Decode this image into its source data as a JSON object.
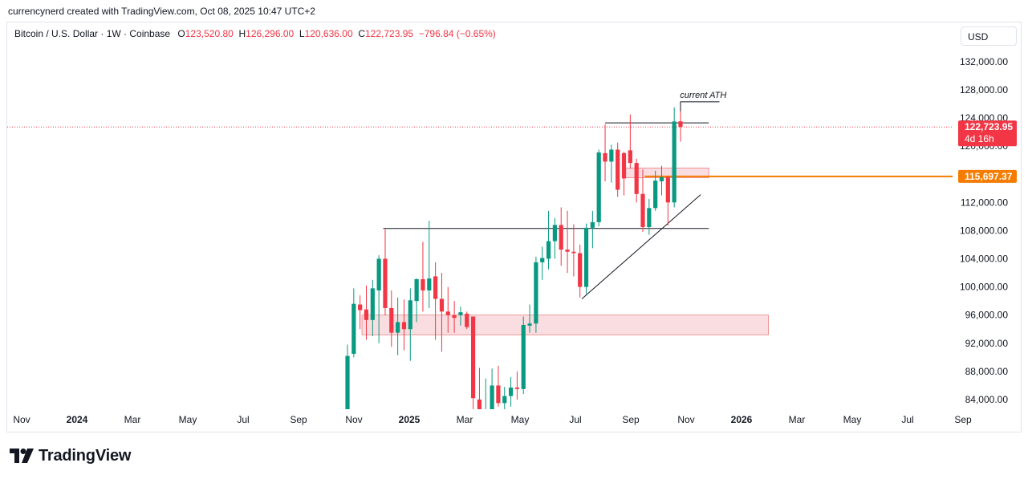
{
  "credit": "currencynerd created with TradingView.com, Oct 08, 2025 10:47 UTC+2",
  "legend": {
    "symbol": "Bitcoin / U.S. Dollar · 1W · Coinbase",
    "o_label": "O",
    "o_value": "123,520.80",
    "h_label": "H",
    "h_value": "126,296.00",
    "l_label": "L",
    "l_value": "120,636.00",
    "c_label": "C",
    "c_value": "122,723.95",
    "change": "−796.84 (−0.65%)"
  },
  "currency": "USD",
  "brand": "TradingView",
  "colors": {
    "up": "#089981",
    "down": "#f23645",
    "zone_fill": "#f8d7da",
    "level_orange": "#f57c00",
    "line": "#131722"
  },
  "chart_data": {
    "type": "candlestick",
    "timeframe": "1W",
    "y_axis": {
      "ylim": [
        82000,
        136000
      ],
      "ticks": [
        84000,
        88000,
        92000,
        96000,
        100000,
        104000,
        108000,
        112000,
        116000,
        120000,
        124000,
        128000,
        132000
      ],
      "tick_labels": [
        "84,000.00",
        "88,000.00",
        "92,000.00",
        "96,000.00",
        "100,000.00",
        "104,000.00",
        "108,000.00",
        "112,000.00",
        "116,000.00",
        "120,000.00",
        "124,000.00",
        "128,000.00",
        "132,000.00"
      ]
    },
    "x_axis": {
      "labels": [
        "Nov",
        "2024",
        "Mar",
        "May",
        "Jul",
        "Sep",
        "Nov",
        "2025",
        "Mar",
        "May",
        "Jul",
        "Sep",
        "Nov",
        "2026",
        "Mar",
        "May",
        "Jul",
        "Sep"
      ],
      "label_months": [
        0,
        2,
        4,
        6,
        8,
        10,
        12,
        14,
        16,
        18,
        20,
        22,
        24,
        26,
        28,
        30,
        32,
        34
      ],
      "bold_labels": [
        "2024",
        "2025",
        "2026"
      ]
    },
    "candles": [
      {
        "t": 1,
        "o": 82000,
        "h": 91800,
        "l": 80000,
        "c": 90200
      },
      {
        "t": 2,
        "o": 90500,
        "h": 99800,
        "l": 90000,
        "c": 97600
      },
      {
        "t": 3,
        "o": 97500,
        "h": 98800,
        "l": 94000,
        "c": 96700
      },
      {
        "t": 4,
        "o": 96800,
        "h": 100200,
        "l": 92500,
        "c": 95300
      },
      {
        "t": 5,
        "o": 95300,
        "h": 101000,
        "l": 93000,
        "c": 99800
      },
      {
        "t": 6,
        "o": 99500,
        "h": 104500,
        "l": 92000,
        "c": 104000
      },
      {
        "t": 7,
        "o": 104000,
        "h": 108200,
        "l": 96000,
        "c": 97000
      },
      {
        "t": 8,
        "o": 97000,
        "h": 99500,
        "l": 91500,
        "c": 93500
      },
      {
        "t": 9,
        "o": 93500,
        "h": 98500,
        "l": 90300,
        "c": 95000
      },
      {
        "t": 10,
        "o": 95000,
        "h": 98200,
        "l": 91000,
        "c": 94000
      },
      {
        "t": 11,
        "o": 94000,
        "h": 99800,
        "l": 89500,
        "c": 98100
      },
      {
        "t": 12,
        "o": 98000,
        "h": 101200,
        "l": 95000,
        "c": 101100
      },
      {
        "t": 13,
        "o": 101100,
        "h": 106400,
        "l": 96500,
        "c": 99500
      },
      {
        "t": 14,
        "o": 99500,
        "h": 109400,
        "l": 97000,
        "c": 101200
      },
      {
        "t": 15,
        "o": 101500,
        "h": 103500,
        "l": 92500,
        "c": 98300
      },
      {
        "t": 16,
        "o": 98300,
        "h": 102000,
        "l": 90800,
        "c": 96500
      },
      {
        "t": 17,
        "o": 96500,
        "h": 100000,
        "l": 93500,
        "c": 96000
      },
      {
        "t": 18,
        "o": 96000,
        "h": 98000,
        "l": 93500,
        "c": 95600
      },
      {
        "t": 19,
        "o": 96000,
        "h": 97200,
        "l": 94500,
        "c": 96400
      },
      {
        "t": 20,
        "o": 96200,
        "h": 96500,
        "l": 94000,
        "c": 94300
      },
      {
        "t": 21,
        "o": 95800,
        "h": 95800,
        "l": 78000,
        "c": 84200
      },
      {
        "t": 22,
        "o": 84000,
        "h": 88500,
        "l": 77000,
        "c": 80500
      },
      {
        "t": 23,
        "o": 80500,
        "h": 87000,
        "l": 78000,
        "c": 82500
      },
      {
        "t": 24,
        "o": 82500,
        "h": 88400,
        "l": 81500,
        "c": 86000
      },
      {
        "t": 25,
        "o": 86000,
        "h": 88800,
        "l": 83000,
        "c": 83500
      },
      {
        "t": 26,
        "o": 83500,
        "h": 85800,
        "l": 80500,
        "c": 84500
      },
      {
        "t": 27,
        "o": 84500,
        "h": 87200,
        "l": 83000,
        "c": 85700
      },
      {
        "t": 28,
        "o": 85700,
        "h": 88000,
        "l": 84000,
        "c": 85500
      },
      {
        "t": 29,
        "o": 85500,
        "h": 95800,
        "l": 84800,
        "c": 94600
      },
      {
        "t": 30,
        "o": 94500,
        "h": 97500,
        "l": 93500,
        "c": 94800
      },
      {
        "t": 31,
        "o": 94800,
        "h": 104300,
        "l": 93500,
        "c": 103500
      },
      {
        "t": 32,
        "o": 103500,
        "h": 105700,
        "l": 101000,
        "c": 104100
      },
      {
        "t": 33,
        "o": 104000,
        "h": 110800,
        "l": 102500,
        "c": 106500
      },
      {
        "t": 34,
        "o": 106500,
        "h": 109800,
        "l": 104000,
        "c": 108800
      },
      {
        "t": 35,
        "o": 108800,
        "h": 111300,
        "l": 103000,
        "c": 105300
      },
      {
        "t": 36,
        "o": 105300,
        "h": 110800,
        "l": 102000,
        "c": 105000
      },
      {
        "t": 37,
        "o": 105000,
        "h": 108900,
        "l": 101500,
        "c": 104800
      },
      {
        "t": 38,
        "o": 104800,
        "h": 106000,
        "l": 98500,
        "c": 100000
      },
      {
        "t": 39,
        "o": 100000,
        "h": 109000,
        "l": 99000,
        "c": 108400
      },
      {
        "t": 40,
        "o": 108400,
        "h": 110800,
        "l": 105500,
        "c": 109200
      },
      {
        "t": 41,
        "o": 109200,
        "h": 119500,
        "l": 108600,
        "c": 119100
      },
      {
        "t": 42,
        "o": 119000,
        "h": 123100,
        "l": 115000,
        "c": 117800
      },
      {
        "t": 43,
        "o": 117800,
        "h": 120200,
        "l": 114800,
        "c": 119500
      },
      {
        "t": 44,
        "o": 119500,
        "h": 120500,
        "l": 112800,
        "c": 113800
      },
      {
        "t": 45,
        "o": 119000,
        "h": 119200,
        "l": 113000,
        "c": 115400
      },
      {
        "t": 46,
        "o": 119400,
        "h": 124500,
        "l": 116800,
        "c": 117600
      },
      {
        "t": 47,
        "o": 117600,
        "h": 118200,
        "l": 112000,
        "c": 113200
      },
      {
        "t": 48,
        "o": 113200,
        "h": 116700,
        "l": 107800,
        "c": 108500
      },
      {
        "t": 49,
        "o": 108500,
        "h": 112500,
        "l": 107400,
        "c": 111200
      },
      {
        "t": 50,
        "o": 111200,
        "h": 116500,
        "l": 110800,
        "c": 115100
      },
      {
        "t": 51,
        "o": 115000,
        "h": 117200,
        "l": 113000,
        "c": 115600
      },
      {
        "t": 52,
        "o": 115600,
        "h": 115800,
        "l": 108700,
        "c": 112000
      },
      {
        "t": 53,
        "o": 112000,
        "h": 125500,
        "l": 111300,
        "c": 123500
      },
      {
        "t": 54,
        "o": 123520.8,
        "h": 126296.0,
        "l": 120636.0,
        "c": 122723.95
      }
    ],
    "zones": [
      {
        "from_t": 45.2,
        "to_t": 58.5,
        "y_high": 116900,
        "y_low": 115500
      },
      {
        "from_t": 3.3,
        "to_t": 68.0,
        "y_high": 96000,
        "y_low": 93200
      }
    ],
    "horizontal_lines": [
      {
        "y": 123300,
        "from_t": 42,
        "to_t": 58.5
      },
      {
        "y": 108300,
        "from_t": 6.7,
        "to_t": 58.5
      }
    ],
    "ath_marker": {
      "label": "current ATH",
      "y": 126296,
      "from_t": 54,
      "to_t": 60.2
    },
    "trendline": {
      "from": {
        "t": 38.3,
        "y": 98300
      },
      "to": {
        "t": 57.2,
        "y": 113100
      }
    },
    "price_labels": [
      {
        "value": "122,723.95",
        "sub": "4d 16h",
        "color": "#f23645",
        "y": 122723.95
      },
      {
        "value": "115,697.37",
        "color": "#f57c00",
        "y": 115697.37
      }
    ],
    "last_price_line": {
      "y": 122723.95,
      "color": "#f23645",
      "style": "dotted"
    },
    "orange_level": {
      "y": 115697.37,
      "from_t": 48.3
    }
  }
}
